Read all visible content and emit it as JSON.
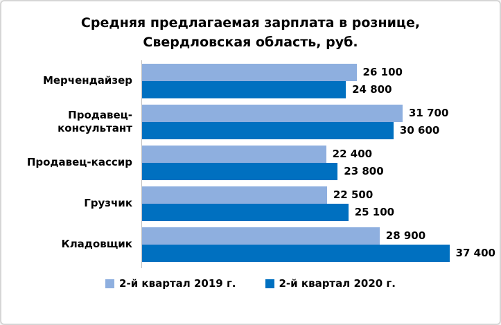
{
  "chart_data": {
    "type": "bar",
    "orientation": "horizontal",
    "title": "Средняя предлагаемая зарплата в рознице, Свердловская область, руб.",
    "title_lines": [
      "Средняя предлагаемая зарплата в рознице,",
      "Свердловская область, руб."
    ],
    "categories": [
      "Мерчендайзер",
      "Продавец-\nконсультант",
      "Продавец-кассир",
      "Грузчик",
      "Кладовщик"
    ],
    "series": [
      {
        "name": "2-й квартал 2019 г.",
        "color": "#8eafdf",
        "values": [
          26100,
          31700,
          22400,
          22500,
          28900
        ],
        "labels": [
          "26 100",
          "31 700",
          "22 400",
          "22 500",
          "28 900"
        ]
      },
      {
        "name": "2-й квартал 2020 г.",
        "color": "#0070c0",
        "values": [
          24800,
          30600,
          23800,
          25100,
          37400
        ],
        "labels": [
          "24 800",
          "30 600",
          "23 800",
          "25 100",
          "37 400"
        ]
      }
    ],
    "xlabel": "",
    "ylabel": "",
    "xlim": [
      0,
      43000
    ],
    "grid": false,
    "axis_line_color": "#bfbfbf",
    "frame_border_color": "#d6d6d6",
    "legend_position": "bottom",
    "value_labels": true
  }
}
